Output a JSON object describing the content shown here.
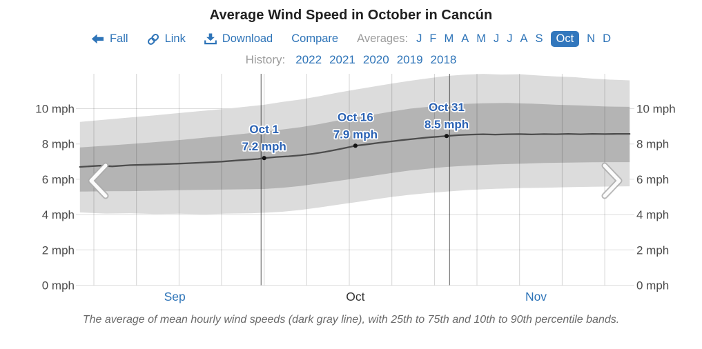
{
  "header": {
    "title": "Average Wind Speed in October in Cancún",
    "nav": {
      "season": {
        "icon": "left-arrow-icon",
        "label": "Fall"
      },
      "link": {
        "icon": "chain-link-icon",
        "label": "Link"
      },
      "download": {
        "icon": "download-icon",
        "label": "Download"
      },
      "compare": {
        "label": "Compare"
      },
      "averages": {
        "label": "Averages:",
        "months": [
          {
            "label": "J"
          },
          {
            "label": "F"
          },
          {
            "label": "M"
          },
          {
            "label": "A"
          },
          {
            "label": "M"
          },
          {
            "label": "J"
          },
          {
            "label": "J"
          },
          {
            "label": "A"
          },
          {
            "label": "S"
          },
          {
            "label": "Oct",
            "selected": true
          },
          {
            "label": "N"
          },
          {
            "label": "D"
          }
        ]
      },
      "history": {
        "label": "History:",
        "years": [
          "2022",
          "2021",
          "2020",
          "2019",
          "2018"
        ]
      }
    }
  },
  "chart_data": {
    "type": "area",
    "title": "Average Wind Speed in October in Cancún",
    "unit": "mph",
    "caption": "The average of mean hourly wind speeds (dark gray line), with 25th to 75th and 10th to 90th percentile bands.",
    "y_axis": {
      "ticks": [
        0,
        2,
        4,
        6,
        8,
        10
      ],
      "tick_suffix": " mph",
      "ylim": [
        0,
        12.3
      ],
      "labels_both_sides": true
    },
    "x_axis": {
      "day_range_from_oct1": [
        -30.3,
        60.1
      ],
      "month_labels": [
        {
          "label": "Sep",
          "day": -14.7,
          "link": true
        },
        {
          "label": "Oct",
          "day": 15,
          "link": false
        },
        {
          "label": "Nov",
          "day": 44.7,
          "link": true
        }
      ],
      "weekly_gridline_days": [
        -28,
        -21,
        -14,
        -7,
        0,
        7,
        14,
        21,
        28,
        35,
        42,
        49,
        56
      ],
      "month_boundary_days": [
        -0.5,
        30.5
      ]
    },
    "series": {
      "mean": [
        [
          -30.3,
          6.7
        ],
        [
          -27,
          6.77
        ],
        [
          -25,
          6.73
        ],
        [
          -22,
          6.8
        ],
        [
          -19,
          6.83
        ],
        [
          -16,
          6.86
        ],
        [
          -13,
          6.9
        ],
        [
          -10,
          6.95
        ],
        [
          -7,
          7.0
        ],
        [
          -4,
          7.08
        ],
        [
          -1,
          7.15
        ],
        [
          0,
          7.2
        ],
        [
          2,
          7.26
        ],
        [
          4,
          7.3
        ],
        [
          6,
          7.36
        ],
        [
          8,
          7.44
        ],
        [
          10,
          7.55
        ],
        [
          12,
          7.68
        ],
        [
          14,
          7.82
        ],
        [
          15,
          7.9
        ],
        [
          17,
          7.98
        ],
        [
          19,
          8.07
        ],
        [
          21,
          8.15
        ],
        [
          23,
          8.23
        ],
        [
          25,
          8.3
        ],
        [
          27,
          8.37
        ],
        [
          29,
          8.42
        ],
        [
          30,
          8.45
        ],
        [
          32,
          8.5
        ],
        [
          34,
          8.53
        ],
        [
          36,
          8.55
        ],
        [
          38,
          8.53
        ],
        [
          40,
          8.55
        ],
        [
          42,
          8.56
        ],
        [
          44,
          8.54
        ],
        [
          46,
          8.56
        ],
        [
          48,
          8.55
        ],
        [
          50,
          8.57
        ],
        [
          52,
          8.55
        ],
        [
          54,
          8.57
        ],
        [
          56,
          8.56
        ],
        [
          58,
          8.57
        ],
        [
          60.1,
          8.57
        ]
      ],
      "p75": [
        [
          -30.3,
          7.8
        ],
        [
          -26,
          7.9
        ],
        [
          -22,
          8.0
        ],
        [
          -18,
          8.1
        ],
        [
          -14,
          8.22
        ],
        [
          -10,
          8.35
        ],
        [
          -6,
          8.48
        ],
        [
          -2,
          8.62
        ],
        [
          0,
          8.7
        ],
        [
          3,
          8.82
        ],
        [
          6,
          8.95
        ],
        [
          9,
          9.12
        ],
        [
          12,
          9.32
        ],
        [
          15,
          9.5
        ],
        [
          18,
          9.66
        ],
        [
          21,
          9.84
        ],
        [
          24,
          10.0
        ],
        [
          27,
          10.1
        ],
        [
          30,
          10.2
        ],
        [
          33,
          10.27
        ],
        [
          36,
          10.3
        ],
        [
          40,
          10.32
        ],
        [
          44,
          10.28
        ],
        [
          48,
          10.22
        ],
        [
          52,
          10.18
        ],
        [
          56,
          10.12
        ],
        [
          60.1,
          10.1
        ]
      ],
      "p25": [
        [
          -30.3,
          5.3
        ],
        [
          -26,
          5.32
        ],
        [
          -22,
          5.33
        ],
        [
          -18,
          5.35
        ],
        [
          -14,
          5.38
        ],
        [
          -10,
          5.4
        ],
        [
          -6,
          5.42
        ],
        [
          -2,
          5.44
        ],
        [
          0,
          5.45
        ],
        [
          3,
          5.52
        ],
        [
          6,
          5.62
        ],
        [
          9,
          5.76
        ],
        [
          12,
          5.9
        ],
        [
          15,
          6.05
        ],
        [
          18,
          6.2
        ],
        [
          21,
          6.36
        ],
        [
          24,
          6.5
        ],
        [
          27,
          6.6
        ],
        [
          30,
          6.7
        ],
        [
          34,
          6.78
        ],
        [
          38,
          6.84
        ],
        [
          42,
          6.88
        ],
        [
          46,
          6.92
        ],
        [
          50,
          6.94
        ],
        [
          54,
          6.96
        ],
        [
          60.1,
          6.97
        ]
      ],
      "p90": [
        [
          -30.3,
          9.25
        ],
        [
          -26,
          9.38
        ],
        [
          -22,
          9.5
        ],
        [
          -18,
          9.62
        ],
        [
          -14,
          9.75
        ],
        [
          -10,
          9.88
        ],
        [
          -6,
          10.0
        ],
        [
          -2,
          10.15
        ],
        [
          0,
          10.22
        ],
        [
          3,
          10.38
        ],
        [
          6,
          10.52
        ],
        [
          9,
          10.7
        ],
        [
          12,
          10.9
        ],
        [
          15,
          11.08
        ],
        [
          18,
          11.25
        ],
        [
          21,
          11.42
        ],
        [
          24,
          11.58
        ],
        [
          27,
          11.72
        ],
        [
          30,
          11.85
        ],
        [
          33,
          11.92
        ],
        [
          36,
          11.97
        ],
        [
          39,
          11.93
        ],
        [
          42,
          11.95
        ],
        [
          45,
          11.88
        ],
        [
          48,
          11.82
        ],
        [
          51,
          11.78
        ],
        [
          54,
          11.7
        ],
        [
          57,
          11.64
        ],
        [
          60.1,
          11.6
        ]
      ],
      "p10": [
        [
          -30.3,
          4.12
        ],
        [
          -26,
          4.06
        ],
        [
          -22,
          4.08
        ],
        [
          -18,
          4.03
        ],
        [
          -14,
          4.05
        ],
        [
          -10,
          4.02
        ],
        [
          -6,
          4.06
        ],
        [
          -2,
          4.08
        ],
        [
          0,
          4.1
        ],
        [
          3,
          4.16
        ],
        [
          6,
          4.26
        ],
        [
          9,
          4.4
        ],
        [
          12,
          4.55
        ],
        [
          15,
          4.7
        ],
        [
          18,
          4.85
        ],
        [
          21,
          5.0
        ],
        [
          24,
          5.12
        ],
        [
          27,
          5.22
        ],
        [
          30,
          5.3
        ],
        [
          34,
          5.4
        ],
        [
          38,
          5.46
        ],
        [
          42,
          5.5
        ],
        [
          46,
          5.52
        ],
        [
          50,
          5.55
        ],
        [
          54,
          5.58
        ],
        [
          60.1,
          5.6
        ]
      ]
    },
    "markers": [
      {
        "day": 0,
        "date_label": "Oct 1",
        "value_label": "7.2 mph"
      },
      {
        "day": 15,
        "date_label": "Oct 16",
        "value_label": "7.9 mph"
      },
      {
        "day": 30,
        "date_label": "Oct 31",
        "value_label": "8.5 mph"
      }
    ]
  },
  "colors": {
    "link_blue": "#2e74b8",
    "selected_pill_bg": "#3277bd",
    "muted_label_gray": "#9b9b9b",
    "band_light": "#dcdcdc",
    "band_dark": "#b4b4b4",
    "mean_line": "#4d4d4d",
    "marker_label_blue": "#2a62b4",
    "axis_text": "#4b4b4b",
    "current_month_text": "#333333",
    "caption_gray": "#696969"
  }
}
